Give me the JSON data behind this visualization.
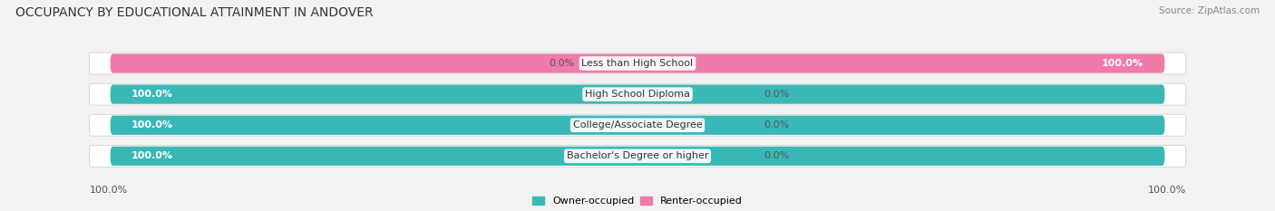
{
  "title": "OCCUPANCY BY EDUCATIONAL ATTAINMENT IN ANDOVER",
  "source": "Source: ZipAtlas.com",
  "categories": [
    "Less than High School",
    "High School Diploma",
    "College/Associate Degree",
    "Bachelor's Degree or higher"
  ],
  "owner_pct": [
    0.0,
    100.0,
    100.0,
    100.0
  ],
  "renter_pct": [
    100.0,
    0.0,
    0.0,
    0.0
  ],
  "owner_color": "#3ab8b8",
  "renter_color": "#f07aaa",
  "bg_color": "#f2f2f2",
  "bar_bg_color": "#e2e2e2",
  "row_bg_color": "#ffffff",
  "title_fontsize": 10,
  "label_fontsize": 8,
  "tick_fontsize": 8,
  "bar_height": 0.62,
  "source_fontsize": 7.5
}
